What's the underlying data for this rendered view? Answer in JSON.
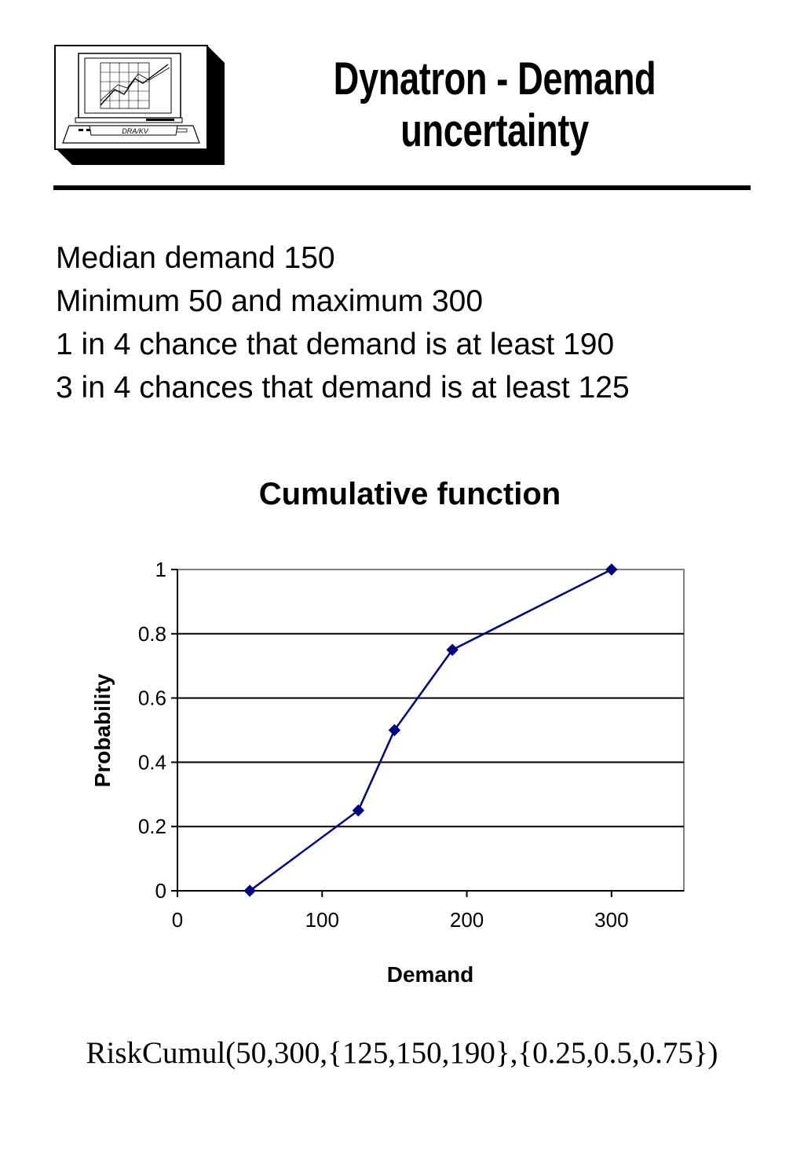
{
  "header": {
    "title_line1": "Dynatron - Demand",
    "title_line2": "uncertainty",
    "logo_label": "DRA/KV"
  },
  "bullets": [
    "Median demand 150",
    "Minimum 50 and maximum 300",
    "1 in 4 chance that demand is at least 190",
    "3 in 4 chances that demand is at least 125"
  ],
  "chart_data": {
    "type": "line",
    "title": "Cumulative function",
    "xlabel": "Demand",
    "ylabel": "Probability",
    "xlim": [
      0,
      350
    ],
    "ylim": [
      0,
      1
    ],
    "xticks": [
      0,
      100,
      200,
      300
    ],
    "xtick_labels": [
      "0",
      "100",
      "200",
      "300"
    ],
    "yticks": [
      0,
      0.2,
      0.4,
      0.6,
      0.8,
      1
    ],
    "ytick_labels": [
      "0",
      "0.2",
      "0.4",
      "0.6",
      "0.8",
      "1"
    ],
    "grid": "horizontal",
    "series": [
      {
        "x": [
          50,
          125,
          150,
          190,
          300
        ],
        "y": [
          0,
          0.25,
          0.5,
          0.75,
          1
        ],
        "color": "#000080",
        "marker": "diamond"
      }
    ]
  },
  "formula": "RiskCumul(50,300,{125,150,190},{0.25,0.5,0.75})"
}
